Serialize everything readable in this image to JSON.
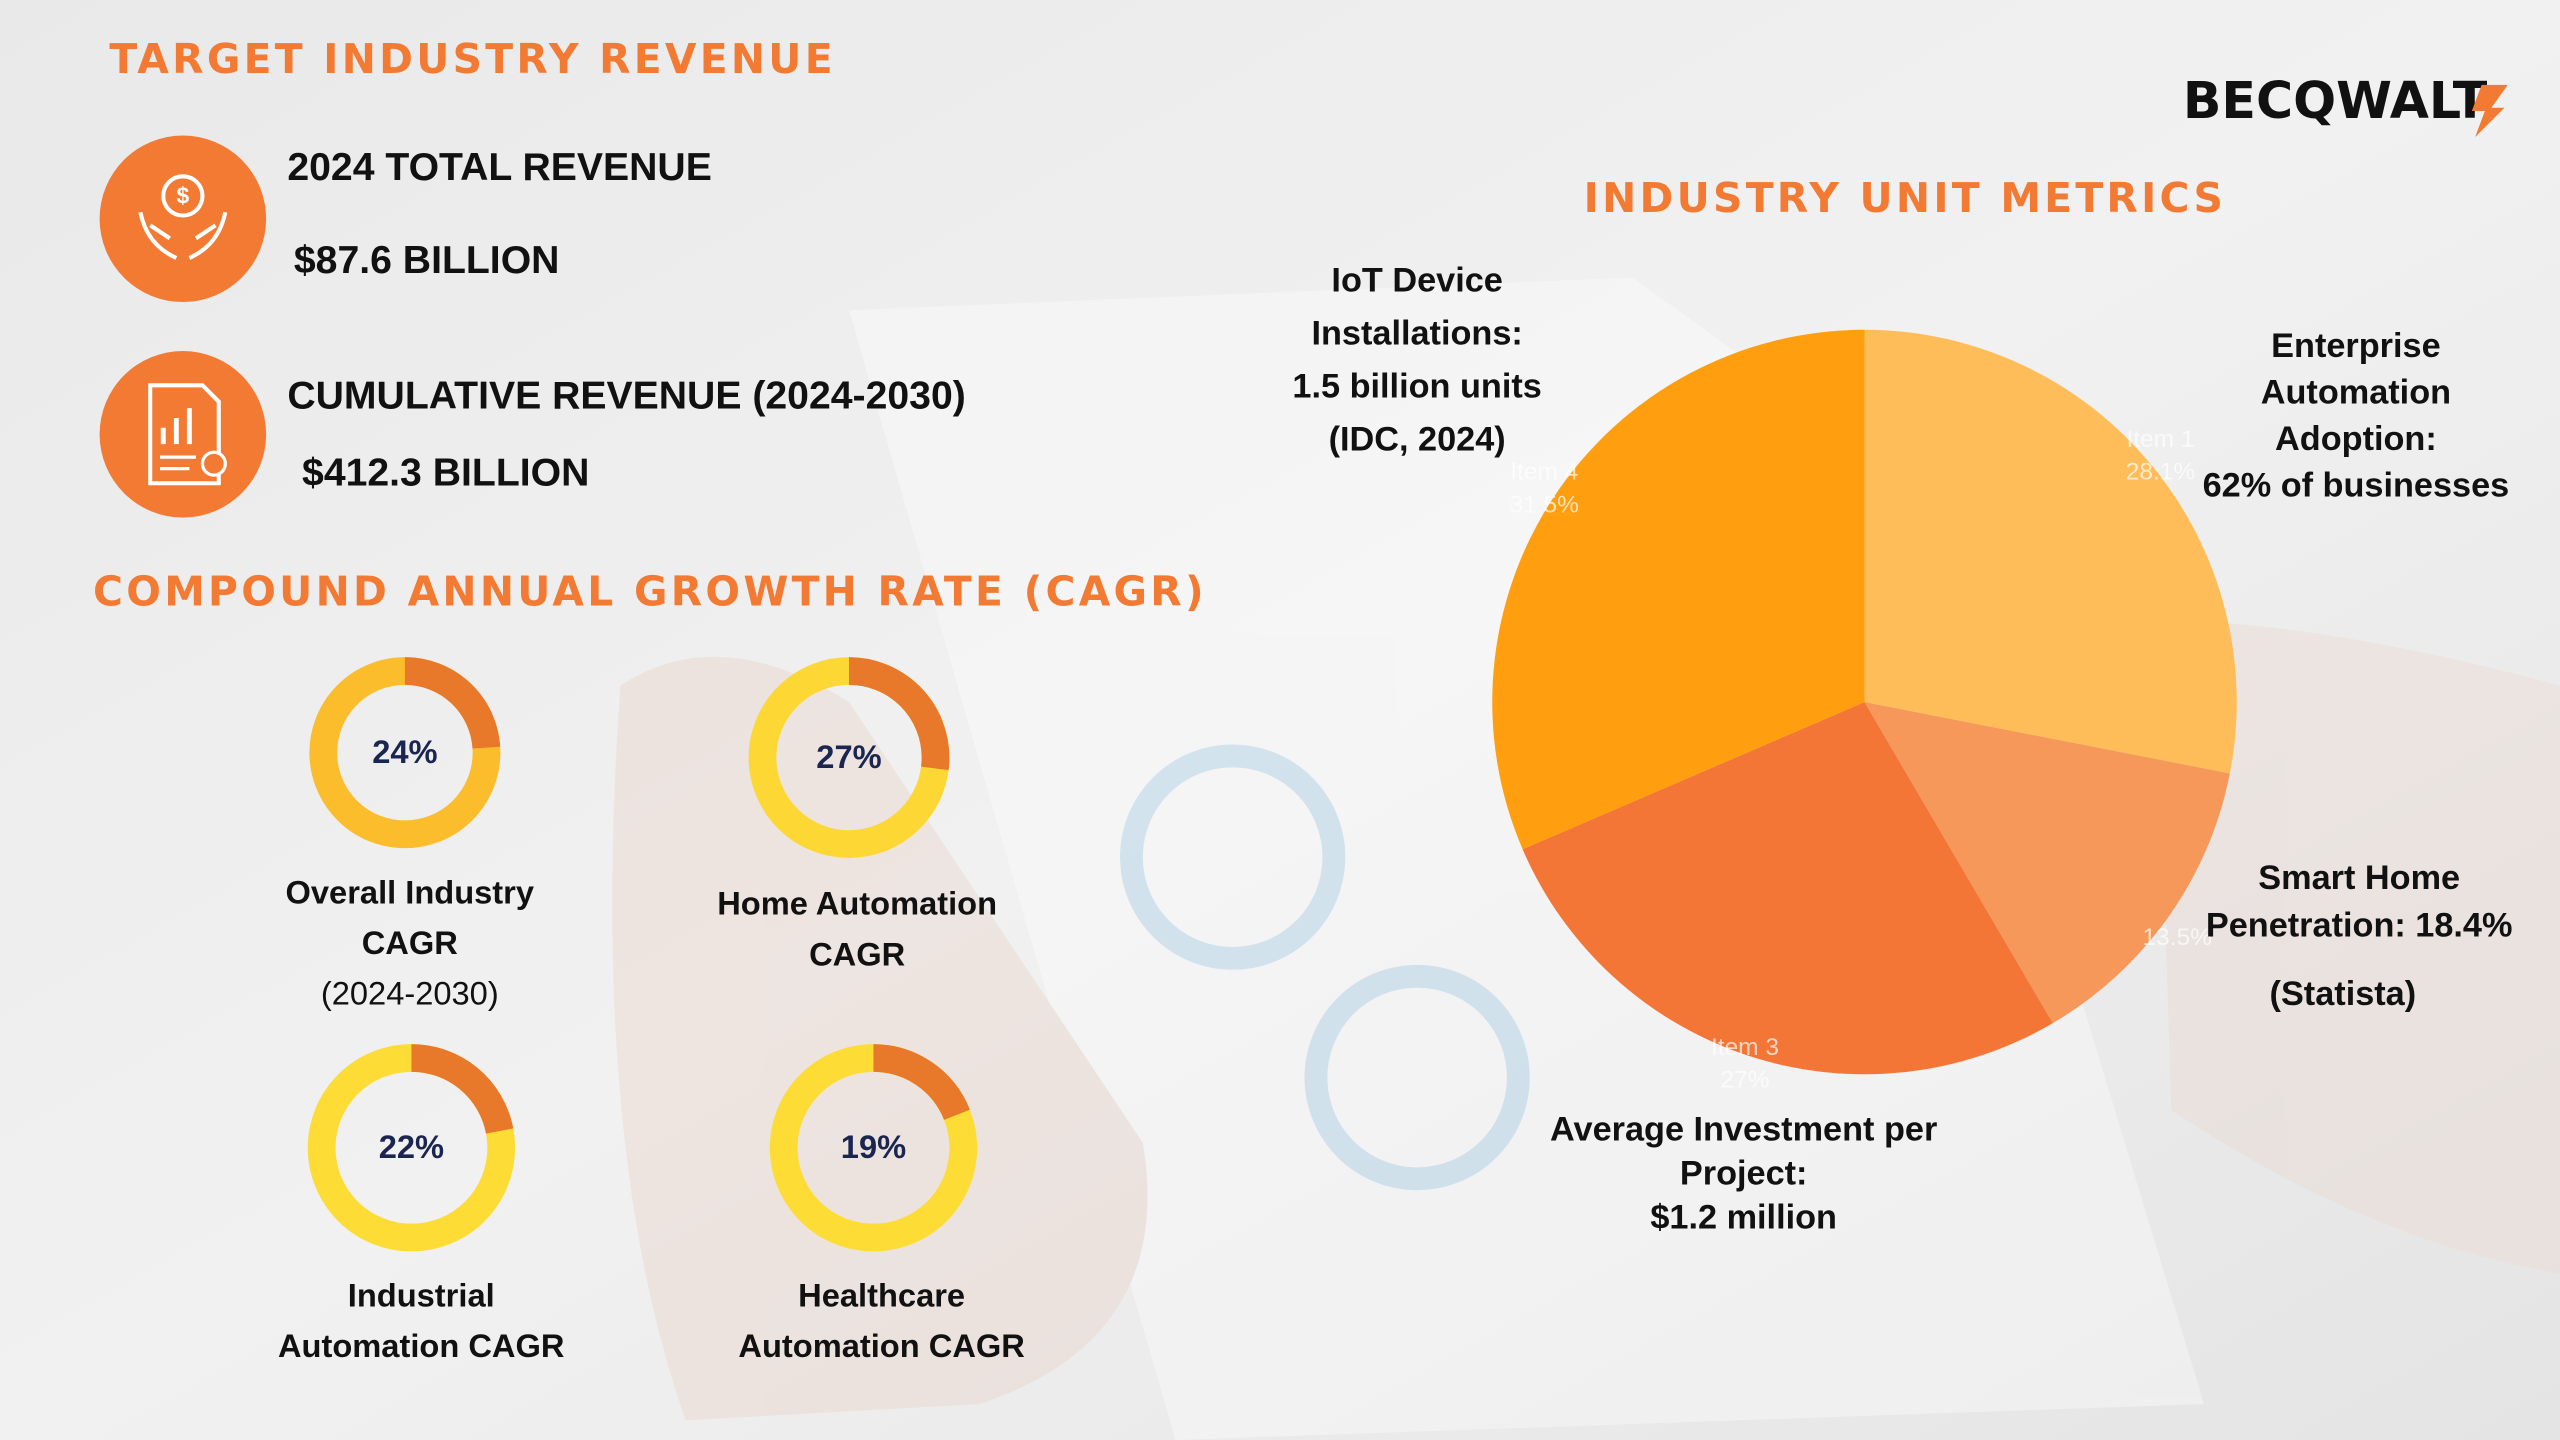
{
  "logo": "BECQWALT",
  "revenue": {
    "title": "TARGET INDUSTRY REVENUE",
    "items": [
      {
        "label": "2024 TOTAL REVENUE",
        "value": "$87.6 BILLION"
      },
      {
        "label": "CUMULATIVE REVENUE (2024-2030)",
        "value": "$412.3 BILLION"
      }
    ]
  },
  "cagr": {
    "title": "COMPOUND ANNUAL GROWTH RATE (CAGR)",
    "charts": [
      {
        "type": "donut",
        "values": [
          24
        ],
        "value_labels": [
          "24%"
        ],
        "colors": [
          "#e8782a",
          "#fbbd2c"
        ],
        "label": [
          "Overall Industry",
          "CAGR",
          "(2024-2030)"
        ]
      },
      {
        "type": "donut",
        "values": [
          27
        ],
        "value_labels": [
          "27%"
        ],
        "colors": [
          "#e8782a",
          "#fdd835"
        ],
        "label": [
          "Home Automation",
          "CAGR"
        ]
      },
      {
        "type": "donut",
        "values": [
          22
        ],
        "value_labels": [
          "22%"
        ],
        "colors": [
          "#e8782a",
          "#fddc36"
        ],
        "label": [
          "Industrial",
          "Automation CAGR"
        ]
      },
      {
        "type": "donut",
        "values": [
          19
        ],
        "value_labels": [
          "19%"
        ],
        "colors": [
          "#e8782a",
          "#fddc36"
        ],
        "label": [
          "Healthcare",
          "Automation CAGR"
        ]
      }
    ]
  },
  "chart_data": {
    "type": "pie",
    "title": "INDUSTRY UNIT METRICS",
    "categories": [
      "Item 1",
      null,
      "Item 3",
      "Item 4"
    ],
    "values": [
      28.1,
      13.5,
      27,
      31.5
    ],
    "value_labels": [
      "28.1%",
      "13.5%",
      "27%",
      "31.5%"
    ],
    "colors": [
      "#ffbd59",
      "#f5985a",
      "#f37636",
      "#ff9f10"
    ],
    "annotations": [
      [
        "Enterprise",
        "Automation",
        "Adoption:",
        "62% of businesses"
      ],
      [
        "Smart Home",
        "Penetration: 18.4%",
        "(Statista)"
      ],
      [
        "Average Investment per",
        "Project:",
        "$1.2 million"
      ],
      [
        "IoT Device",
        "Installations:",
        "1.5 billion units",
        "(IDC, 2024)"
      ]
    ]
  }
}
